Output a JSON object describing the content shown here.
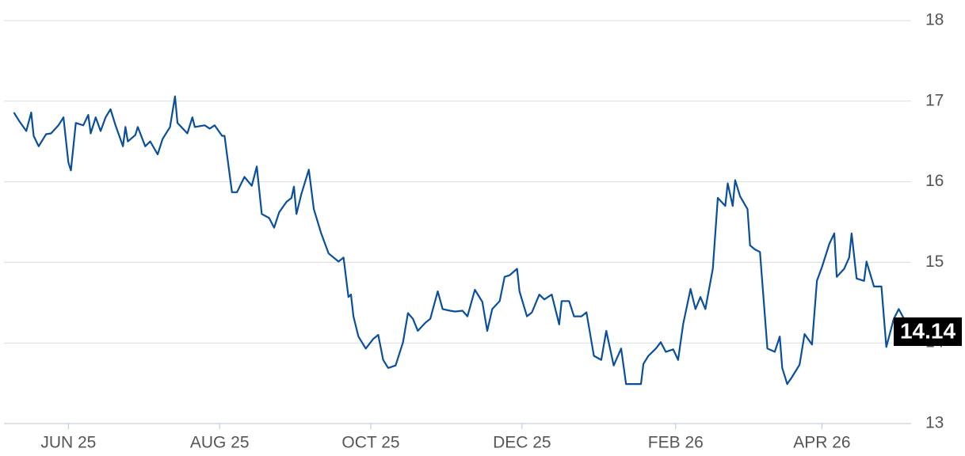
{
  "chart_data": {
    "type": "line",
    "x": [
      -22,
      -20,
      -17,
      -15,
      -14,
      -12,
      -9,
      -7,
      -4,
      -2,
      0,
      1,
      3,
      6,
      8,
      9,
      11,
      13,
      15,
      17,
      19,
      22,
      23,
      24,
      27,
      28,
      31,
      33,
      36,
      38,
      41,
      43,
      44,
      48,
      50,
      51,
      55,
      57,
      59,
      62,
      63,
      66,
      68,
      71,
      74,
      76,
      78,
      81,
      83,
      85,
      88,
      90,
      91,
      92,
      94,
      97,
      99,
      102,
      105,
      107,
      109,
      111,
      113,
      114,
      115,
      117,
      120,
      123,
      125,
      127,
      129,
      132,
      135,
      137,
      139,
      141,
      144,
      146,
      149,
      151,
      154,
      156,
      159,
      161,
      164,
      167,
      169,
      171,
      174,
      176,
      178,
      181,
      182,
      185,
      187,
      190,
      192,
      195,
      198,
      199,
      202,
      204,
      207,
      209,
      212,
      215,
      217,
      220,
      223,
      225,
      228,
      231,
      232,
      234,
      237,
      239,
      241,
      244,
      246,
      248,
      251,
      253,
      255,
      257,
      260,
      262,
      265,
      266,
      268,
      269,
      271,
      274,
      275,
      277,
      279,
      282,
      285,
      287,
      288,
      290,
      292,
      295,
      297,
      300,
      302,
      304,
      307,
      309,
      310,
      313,
      315,
      316,
      318,
      321,
      322,
      325,
      328,
      330,
      333,
      335,
      338,
      339
    ],
    "values": [
      16.86,
      16.76,
      16.63,
      16.86,
      16.57,
      16.44,
      16.59,
      16.6,
      16.7,
      16.8,
      16.24,
      16.14,
      16.73,
      16.7,
      16.83,
      16.6,
      16.8,
      16.63,
      16.8,
      16.9,
      16.7,
      16.44,
      16.68,
      16.5,
      16.58,
      16.68,
      16.44,
      16.5,
      16.34,
      16.53,
      16.68,
      17.06,
      16.73,
      16.6,
      16.8,
      16.68,
      16.7,
      16.66,
      16.7,
      16.57,
      16.57,
      15.87,
      15.87,
      16.06,
      15.95,
      16.19,
      15.6,
      15.55,
      15.43,
      15.62,
      15.75,
      15.8,
      15.94,
      15.6,
      15.85,
      16.15,
      15.66,
      15.36,
      15.11,
      15.06,
      15.01,
      15.06,
      14.57,
      14.6,
      14.33,
      14.08,
      13.93,
      14.05,
      14.1,
      13.79,
      13.69,
      13.72,
      14.01,
      14.37,
      14.3,
      14.15,
      14.25,
      14.3,
      14.64,
      14.42,
      14.4,
      14.39,
      14.4,
      14.33,
      14.66,
      14.51,
      14.15,
      14.42,
      14.52,
      14.82,
      14.84,
      14.92,
      14.64,
      14.33,
      14.38,
      14.6,
      14.54,
      14.6,
      14.23,
      14.52,
      14.52,
      14.33,
      14.33,
      14.38,
      13.84,
      13.79,
      14.15,
      13.72,
      13.93,
      13.49,
      13.49,
      13.49,
      13.74,
      13.84,
      13.93,
      14.01,
      13.89,
      13.92,
      13.79,
      14.23,
      14.67,
      14.42,
      14.57,
      14.42,
      14.92,
      15.8,
      15.7,
      15.98,
      15.7,
      16.02,
      15.82,
      15.66,
      15.21,
      15.16,
      15.13,
      13.93,
      13.89,
      14.08,
      13.69,
      13.49,
      13.58,
      13.73,
      14.11,
      13.98,
      14.77,
      14.94,
      15.23,
      15.36,
      14.82,
      14.92,
      15.06,
      15.36,
      14.8,
      14.77,
      15.01,
      14.7,
      14.7,
      13.95,
      14.3,
      14.42,
      14.25,
      14.14
    ],
    "color": "#0a4f9c",
    "xlim": [
      -26,
      340
    ],
    "xticks": [
      {
        "value": 0,
        "label": "JUN 25"
      },
      {
        "value": 61,
        "label": "AUG 25"
      },
      {
        "value": 122,
        "label": "OCT 25"
      },
      {
        "value": 183,
        "label": "DEC 25"
      },
      {
        "value": 245,
        "label": "FEB 26"
      },
      {
        "value": 304,
        "label": "APR 26"
      }
    ],
    "ylim": [
      13,
      18
    ],
    "yticks": [
      13,
      14,
      15,
      16,
      17,
      18
    ],
    "grid": true
  }
}
